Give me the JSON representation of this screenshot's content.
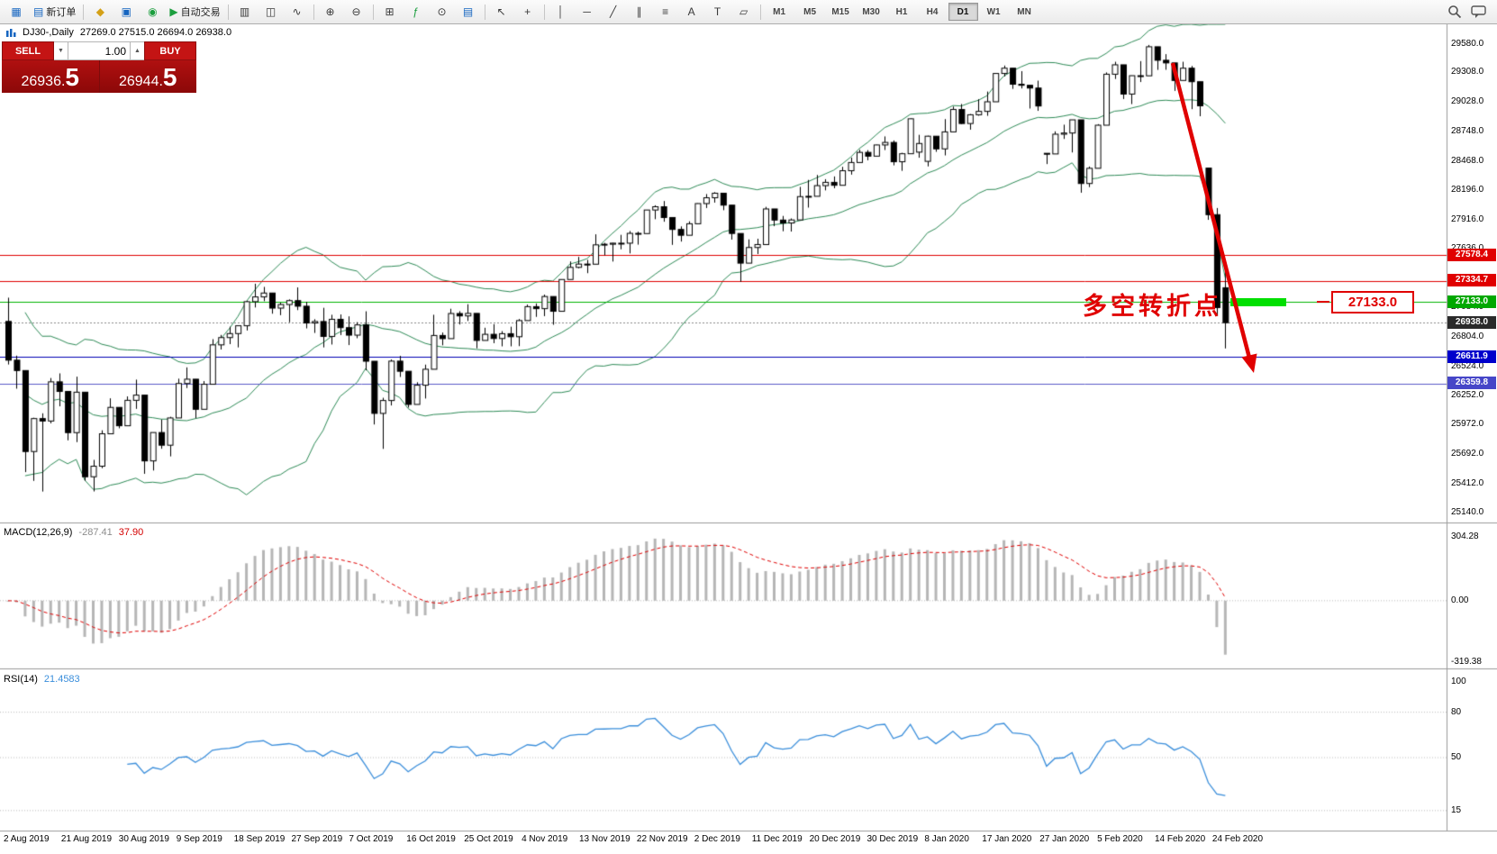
{
  "toolbar": {
    "items": [
      {
        "name": "app-window-button",
        "glyph": "▦",
        "color_class": "g-blue"
      },
      {
        "name": "new-order-button",
        "glyph": "▤",
        "color_class": "g-blue",
        "label": "新订单"
      },
      {
        "type": "sep"
      },
      {
        "name": "profiles-button",
        "glyph": "◆",
        "color_class": "g-gold"
      },
      {
        "name": "market-watch-button",
        "glyph": "▣",
        "color_class": "g-blue"
      },
      {
        "name": "navigator-button",
        "glyph": "◉",
        "color_class": "g-green"
      },
      {
        "name": "autotrading-button",
        "glyph": "▶",
        "color_class": "g-green",
        "label": "自动交易"
      },
      {
        "type": "sep"
      },
      {
        "name": "bar-chart-button",
        "glyph": "▥"
      },
      {
        "name": "candlestick-chart-button",
        "glyph": "◫"
      },
      {
        "name": "line-chart-button",
        "glyph": "∿"
      },
      {
        "type": "sep"
      },
      {
        "name": "zoom-in-button",
        "glyph": "⊕"
      },
      {
        "name": "zoom-out-button",
        "glyph": "⊖"
      },
      {
        "type": "sep"
      },
      {
        "name": "tile-windows-button",
        "glyph": "⊞"
      },
      {
        "name": "indicators-button",
        "glyph": "ƒ",
        "color_class": "g-green"
      },
      {
        "name": "periods-button",
        "glyph": "⊙"
      },
      {
        "name": "templates-button",
        "glyph": "▤",
        "color_class": "g-blue"
      },
      {
        "type": "sep"
      },
      {
        "name": "cursor-tool-button",
        "glyph": "↖"
      },
      {
        "name": "crosshair-tool-button",
        "glyph": "+"
      },
      {
        "type": "sep"
      },
      {
        "name": "vertical-line-tool-button",
        "glyph": "│"
      },
      {
        "name": "horizontal-line-tool-button",
        "glyph": "─"
      },
      {
        "name": "trendline-tool-button",
        "glyph": "╱"
      },
      {
        "name": "channel-tool-button",
        "glyph": "∥"
      },
      {
        "name": "fibonacci-tool-button",
        "glyph": "≡"
      },
      {
        "name": "text-tool-button",
        "glyph": "A"
      },
      {
        "name": "label-tool-button",
        "glyph": "T"
      },
      {
        "name": "shapes-tool-button",
        "glyph": "▱"
      },
      {
        "type": "sep"
      }
    ],
    "timeframes": [
      "M1",
      "M5",
      "M15",
      "M30",
      "H1",
      "H4",
      "D1",
      "W1",
      "MN"
    ],
    "active_timeframe": "D1"
  },
  "chart_header": {
    "symbol_title": "DJ30-,Daily",
    "ohlc_text": "27269.0 27515.0 26694.0 26938.0"
  },
  "trade_panel": {
    "sell_label": "SELL",
    "buy_label": "BUY",
    "volume": "1.00",
    "spin_down_glyph": "▼",
    "spin_up_glyph": "▲",
    "sell_price_main": "26936.",
    "sell_price_big": "5",
    "buy_price_main": "26944.",
    "buy_price_big": "5"
  },
  "indicators": {
    "macd_label": "MACD(12,26,9)",
    "macd_value": "-287.41",
    "macd_signal": "37.90",
    "rsi_label": "RSI(14)",
    "rsi_value": "21.4583"
  },
  "annotations": {
    "turning_point_text": "多空转折点",
    "price_label": "27133.0"
  },
  "colors": {
    "bollinger": "#2e8b57",
    "macd_histogram": "#b6b6b6",
    "macd_signal": "#e00000",
    "rsi_line": "#3a8edb",
    "annotation_red": "#e00000",
    "highlight_green": "#00df00",
    "sell_buy_red": "#c41414",
    "panel_dark_red": "#a00f0f"
  },
  "chart_data": {
    "type": "candlestick",
    "title": "DJ30-,Daily",
    "symbol": "DJ30-",
    "timeframe": "Daily",
    "last_ohlc": {
      "open": 27269.0,
      "high": 27515.0,
      "low": 26694.0,
      "close": 26938.0
    },
    "candles": [
      [
        26950,
        27175,
        26542,
        26583
      ],
      [
        26583,
        26626,
        26313,
        26485
      ],
      [
        26485,
        26485,
        25523,
        25718
      ],
      [
        25718,
        26038,
        25440,
        26030
      ],
      [
        26030,
        26080,
        25339,
        26007
      ],
      [
        26007,
        26414,
        25985,
        26378
      ],
      [
        26378,
        26458,
        26146,
        26287
      ],
      [
        26287,
        26287,
        25824,
        25897
      ],
      [
        25897,
        26427,
        25807,
        26280
      ],
      [
        26280,
        26280,
        25441,
        25479
      ],
      [
        25479,
        25639,
        25340,
        25579
      ],
      [
        25579,
        25919,
        25560,
        25886
      ],
      [
        25886,
        26222,
        25886,
        26136
      ],
      [
        26136,
        26136,
        25938,
        25962
      ],
      [
        25962,
        26240,
        25962,
        26203
      ],
      [
        26203,
        26399,
        26122,
        26252
      ],
      [
        26252,
        26252,
        25507,
        25629
      ],
      [
        25629,
        25899,
        25538,
        25898
      ],
      [
        25898,
        26021,
        25744,
        25778
      ],
      [
        25778,
        26047,
        25672,
        26036
      ],
      [
        26036,
        26408,
        26036,
        26362
      ],
      [
        26362,
        26515,
        26319,
        26403
      ],
      [
        26403,
        26403,
        26034,
        26118
      ],
      [
        26118,
        26385,
        26118,
        26355
      ],
      [
        26355,
        26782,
        26355,
        26728
      ],
      [
        26728,
        26822,
        26684,
        26797
      ],
      [
        26797,
        26900,
        26735,
        26835
      ],
      [
        26835,
        26909,
        26704,
        26909
      ],
      [
        26909,
        27145,
        26864,
        27137
      ],
      [
        27137,
        27307,
        27082,
        27182
      ],
      [
        27182,
        27277,
        27142,
        27219
      ],
      [
        27219,
        27219,
        27023,
        27076
      ],
      [
        27076,
        27127,
        27009,
        27110
      ],
      [
        27110,
        27159,
        26942,
        27147
      ],
      [
        27147,
        27272,
        27057,
        27094
      ],
      [
        27094,
        27136,
        26884,
        26935
      ],
      [
        26935,
        26971,
        26841,
        26949
      ],
      [
        26949,
        27079,
        26704,
        26808
      ],
      [
        26808,
        27013,
        26731,
        26970
      ],
      [
        26970,
        27016,
        26821,
        26891
      ],
      [
        26891,
        26998,
        26726,
        26820
      ],
      [
        26820,
        26943,
        26791,
        26917
      ],
      [
        26917,
        27046,
        26487,
        26573
      ],
      [
        26573,
        26573,
        25974,
        26079
      ],
      [
        26079,
        26227,
        25743,
        26201
      ],
      [
        26201,
        26590,
        26154,
        26574
      ],
      [
        26574,
        26624,
        26424,
        26478
      ],
      [
        26478,
        26478,
        26134,
        26164
      ],
      [
        26164,
        26374,
        26164,
        26346
      ],
      [
        26346,
        26541,
        26220,
        26497
      ],
      [
        26497,
        27013,
        26497,
        26817
      ],
      [
        26817,
        26845,
        26724,
        26787
      ],
      [
        26787,
        27070,
        26787,
        27025
      ],
      [
        27025,
        27047,
        26921,
        27002
      ],
      [
        27002,
        27113,
        26954,
        27026
      ],
      [
        27026,
        27026,
        26695,
        26770
      ],
      [
        26770,
        26890,
        26770,
        26828
      ],
      [
        26828,
        26924,
        26744,
        26788
      ],
      [
        26788,
        26858,
        26714,
        26834
      ],
      [
        26834,
        26900,
        26714,
        26805
      ],
      [
        26805,
        26973,
        26716,
        26958
      ],
      [
        26958,
        27110,
        26958,
        27090
      ],
      [
        27090,
        27120,
        26993,
        27071
      ],
      [
        27071,
        27204,
        27000,
        27186
      ],
      [
        27186,
        27186,
        26918,
        27046
      ],
      [
        27046,
        27347,
        27046,
        27347
      ],
      [
        27347,
        27518,
        27347,
        27462
      ],
      [
        27462,
        27561,
        27453,
        27493
      ],
      [
        27493,
        27533,
        27407,
        27492
      ],
      [
        27492,
        27775,
        27492,
        27675
      ],
      [
        27675,
        27694,
        27576,
        27681
      ],
      [
        27681,
        27694,
        27517,
        27691
      ],
      [
        27691,
        27770,
        27633,
        27691
      ],
      [
        27691,
        27806,
        27594,
        27784
      ],
      [
        27784,
        27800,
        27677,
        27782
      ],
      [
        27782,
        28005,
        27782,
        28005
      ],
      [
        28005,
        28050,
        27918,
        28036
      ],
      [
        28036,
        28090,
        27894,
        27934
      ],
      [
        27934,
        27934,
        27675,
        27821
      ],
      [
        27821,
        27850,
        27706,
        27766
      ],
      [
        27766,
        27898,
        27766,
        27875
      ],
      [
        27875,
        28068,
        27875,
        28066
      ],
      [
        28066,
        28156,
        28024,
        28121
      ],
      [
        28121,
        28174,
        28075,
        28164
      ],
      [
        28164,
        28164,
        28003,
        28051
      ],
      [
        28051,
        28051,
        27725,
        27783
      ],
      [
        27783,
        27783,
        27325,
        27502
      ],
      [
        27502,
        27727,
        27502,
        27650
      ],
      [
        27650,
        27733,
        27588,
        27678
      ],
      [
        27678,
        28035,
        27678,
        28015
      ],
      [
        28015,
        28015,
        27852,
        27910
      ],
      [
        27910,
        27949,
        27804,
        27882
      ],
      [
        27882,
        27925,
        27801,
        27911
      ],
      [
        27911,
        28224,
        27911,
        28132
      ],
      [
        28132,
        28290,
        28028,
        28135
      ],
      [
        28135,
        28337,
        28135,
        28236
      ],
      [
        28236,
        28297,
        28191,
        28267
      ],
      [
        28267,
        28323,
        28211,
        28239
      ],
      [
        28239,
        28414,
        28239,
        28377
      ],
      [
        28377,
        28502,
        28340,
        28455
      ],
      [
        28455,
        28576,
        28455,
        28551
      ],
      [
        28551,
        28572,
        28476,
        28515
      ],
      [
        28515,
        28624,
        28515,
        28621
      ],
      [
        28621,
        28702,
        28573,
        28645
      ],
      [
        28645,
        28664,
        28428,
        28462
      ],
      [
        28462,
        28547,
        28376,
        28538
      ],
      [
        28538,
        28873,
        28538,
        28869
      ],
      [
        28553,
        28717,
        28500,
        28635
      ],
      [
        28466,
        28709,
        28418,
        28704
      ],
      [
        28704,
        28704,
        28556,
        28584
      ],
      [
        28584,
        28866,
        28522,
        28745
      ],
      [
        28745,
        28985,
        28745,
        28957
      ],
      [
        28957,
        29009,
        28820,
        28824
      ],
      [
        28824,
        28914,
        28766,
        28907
      ],
      [
        28907,
        29054,
        28898,
        28939
      ],
      [
        28939,
        29127,
        28897,
        29030
      ],
      [
        29030,
        29300,
        29030,
        29298
      ],
      [
        29298,
        29373,
        29270,
        29348
      ],
      [
        29348,
        29348,
        29152,
        29196
      ],
      [
        29196,
        29320,
        29156,
        29186
      ],
      [
        29186,
        29186,
        28966,
        29160
      ],
      [
        29160,
        29230,
        28944,
        28990
      ],
      [
        28542,
        28542,
        28440,
        28536
      ],
      [
        28536,
        28750,
        28536,
        28723
      ],
      [
        28723,
        28813,
        28678,
        28734
      ],
      [
        28734,
        28859,
        28550,
        28859
      ],
      [
        28859,
        28859,
        28169,
        28256
      ],
      [
        28256,
        28417,
        28222,
        28400
      ],
      [
        28400,
        28818,
        28400,
        28808
      ],
      [
        28808,
        29308,
        28808,
        29291
      ],
      [
        29291,
        29409,
        29246,
        29380
      ],
      [
        29380,
        29380,
        29056,
        29103
      ],
      [
        29103,
        29278,
        29008,
        29277
      ],
      [
        29277,
        29415,
        29217,
        29276
      ],
      [
        29276,
        29568,
        29276,
        29551
      ],
      [
        29551,
        29551,
        29332,
        29423
      ],
      [
        29423,
        29481,
        29333,
        29398
      ],
      [
        29398,
        29398,
        29133,
        29232
      ],
      [
        29232,
        29409,
        29232,
        29348
      ],
      [
        29348,
        29369,
        28960,
        29220
      ],
      [
        29220,
        29220,
        28893,
        28992
      ],
      [
        28402,
        28403,
        27912,
        27961
      ],
      [
        27961,
        28024,
        27003,
        27081
      ],
      [
        27269,
        27515,
        26694,
        26938
      ]
    ],
    "bollinger": {
      "period": 20,
      "deviation": 2
    },
    "price_axis_ticks": [
      "29580.0",
      "29308.0",
      "29028.0",
      "28748.0",
      "28468.0",
      "28196.0",
      "27916.0",
      "27636.0",
      "27356.0",
      "27084.0",
      "26804.0",
      "26524.0",
      "26252.0",
      "25972.0",
      "25692.0",
      "25412.0",
      "25140.0"
    ],
    "date_labels": [
      "2 Aug 2019",
      "21 Aug 2019",
      "30 Aug 2019",
      "9 Sep 2019",
      "18 Sep 2019",
      "27 Sep 2019",
      "7 Oct 2019",
      "16 Oct 2019",
      "25 Oct 2019",
      "4 Nov 2019",
      "13 Nov 2019",
      "22 Nov 2019",
      "2 Dec 2019",
      "11 Dec 2019",
      "20 Dec 2019",
      "30 Dec 2019",
      "8 Jan 2020",
      "17 Jan 2020",
      "27 Jan 2020",
      "5 Feb 2020",
      "14 Feb 2020",
      "24 Feb 2020"
    ],
    "hlines": [
      {
        "price": 27578.4,
        "label": "27578.4",
        "line_color": "#e00000",
        "badge_color": "#e00000"
      },
      {
        "price": 27334.7,
        "label": "27334.7",
        "line_color": "#e00000",
        "badge_color": "#e00000"
      },
      {
        "price": 27133.0,
        "label": "27133.0",
        "line_color": "#00b400",
        "badge_color": "#00a800"
      },
      {
        "price": 26611.9,
        "label": "26611.9",
        "line_color": "#0000b4",
        "badge_color": "#0000cc"
      },
      {
        "price": 26359.8,
        "label": "26359.8",
        "line_color": "#5a5ac8",
        "badge_color": "#4646c8"
      }
    ],
    "current_price": {
      "price": 26938.0,
      "label": "26938.0",
      "badge_color": "#2a2a2a"
    },
    "macd": {
      "params": "12,26,9",
      "value": -287.41,
      "signal": 37.9,
      "axis_ticks": [
        "304.28",
        "0.00",
        "-319.38"
      ]
    },
    "rsi": {
      "period": 14,
      "value": 21.4583,
      "axis_ticks": [
        "100",
        "80",
        "50",
        "15"
      ]
    }
  }
}
